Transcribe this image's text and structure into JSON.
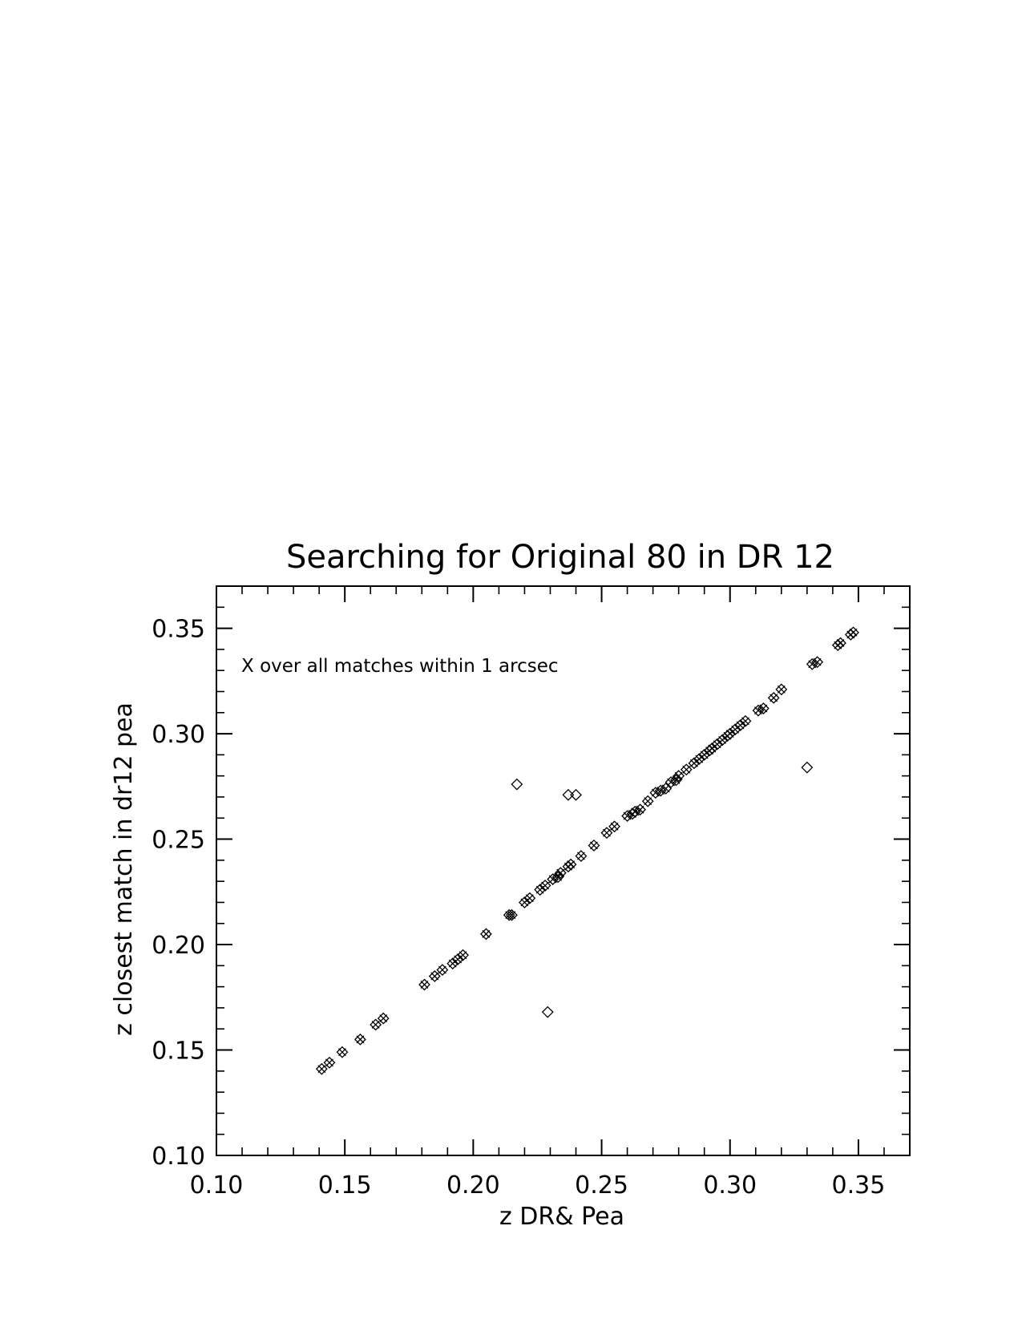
{
  "chart_data": {
    "type": "scatter",
    "title": "Searching for Original 80 in DR 12",
    "xlabel": "z DR& Pea",
    "ylabel": "z closest match in dr12 pea",
    "xlim": [
      0.1,
      0.37
    ],
    "ylim": [
      0.1,
      0.37
    ],
    "xticks": [
      "0.10",
      "0.15",
      "0.20",
      "0.25",
      "0.30",
      "0.35"
    ],
    "yticks": [
      "0.10",
      "0.15",
      "0.20",
      "0.25",
      "0.30",
      "0.35"
    ],
    "annotation": "X over all matches within 1 arcsec",
    "grid": false,
    "marker_color": "#000000",
    "series": [
      {
        "marker": "diamond",
        "points": [
          [
            0.141,
            0.141
          ],
          [
            0.144,
            0.144
          ],
          [
            0.149,
            0.149
          ],
          [
            0.156,
            0.155
          ],
          [
            0.162,
            0.162
          ],
          [
            0.165,
            0.165
          ],
          [
            0.181,
            0.181
          ],
          [
            0.185,
            0.185
          ],
          [
            0.188,
            0.188
          ],
          [
            0.192,
            0.191
          ],
          [
            0.194,
            0.193
          ],
          [
            0.196,
            0.195
          ],
          [
            0.205,
            0.205
          ],
          [
            0.214,
            0.214
          ],
          [
            0.215,
            0.214
          ],
          [
            0.22,
            0.22
          ],
          [
            0.222,
            0.222
          ],
          [
            0.226,
            0.226
          ],
          [
            0.228,
            0.228
          ],
          [
            0.231,
            0.231
          ],
          [
            0.233,
            0.232
          ],
          [
            0.234,
            0.234
          ],
          [
            0.237,
            0.237
          ],
          [
            0.238,
            0.238
          ],
          [
            0.242,
            0.242
          ],
          [
            0.247,
            0.247
          ],
          [
            0.252,
            0.253
          ],
          [
            0.255,
            0.256
          ],
          [
            0.26,
            0.261
          ],
          [
            0.262,
            0.262
          ],
          [
            0.263,
            0.263
          ],
          [
            0.265,
            0.264
          ],
          [
            0.268,
            0.268
          ],
          [
            0.271,
            0.272
          ],
          [
            0.273,
            0.273
          ],
          [
            0.275,
            0.274
          ],
          [
            0.277,
            0.277
          ],
          [
            0.279,
            0.278
          ],
          [
            0.28,
            0.28
          ],
          [
            0.283,
            0.283
          ],
          [
            0.286,
            0.286
          ],
          [
            0.288,
            0.288
          ],
          [
            0.29,
            0.29
          ],
          [
            0.292,
            0.292
          ],
          [
            0.293,
            0.293
          ],
          [
            0.295,
            0.295
          ],
          [
            0.297,
            0.297
          ],
          [
            0.299,
            0.299
          ],
          [
            0.3,
            0.3
          ],
          [
            0.302,
            0.302
          ],
          [
            0.304,
            0.304
          ],
          [
            0.306,
            0.306
          ],
          [
            0.311,
            0.311
          ],
          [
            0.313,
            0.312
          ],
          [
            0.317,
            0.317
          ],
          [
            0.32,
            0.321
          ],
          [
            0.332,
            0.333
          ],
          [
            0.334,
            0.334
          ],
          [
            0.342,
            0.342
          ],
          [
            0.343,
            0.343
          ],
          [
            0.347,
            0.347
          ],
          [
            0.348,
            0.348
          ],
          [
            0.217,
            0.276
          ],
          [
            0.237,
            0.271
          ],
          [
            0.24,
            0.271
          ],
          [
            0.33,
            0.284
          ],
          [
            0.229,
            0.168
          ]
        ]
      },
      {
        "marker": "x",
        "points": [
          [
            0.141,
            0.141
          ],
          [
            0.144,
            0.144
          ],
          [
            0.149,
            0.149
          ],
          [
            0.156,
            0.155
          ],
          [
            0.162,
            0.162
          ],
          [
            0.165,
            0.165
          ],
          [
            0.181,
            0.181
          ],
          [
            0.185,
            0.185
          ],
          [
            0.188,
            0.188
          ],
          [
            0.192,
            0.191
          ],
          [
            0.194,
            0.193
          ],
          [
            0.196,
            0.195
          ],
          [
            0.205,
            0.205
          ],
          [
            0.214,
            0.214
          ],
          [
            0.215,
            0.214
          ],
          [
            0.22,
            0.22
          ],
          [
            0.222,
            0.222
          ],
          [
            0.226,
            0.226
          ],
          [
            0.228,
            0.228
          ],
          [
            0.231,
            0.231
          ],
          [
            0.233,
            0.232
          ],
          [
            0.234,
            0.234
          ],
          [
            0.237,
            0.237
          ],
          [
            0.238,
            0.238
          ],
          [
            0.242,
            0.242
          ],
          [
            0.247,
            0.247
          ],
          [
            0.252,
            0.253
          ],
          [
            0.255,
            0.256
          ],
          [
            0.26,
            0.261
          ],
          [
            0.262,
            0.262
          ],
          [
            0.263,
            0.263
          ],
          [
            0.265,
            0.264
          ],
          [
            0.268,
            0.268
          ],
          [
            0.271,
            0.272
          ],
          [
            0.273,
            0.273
          ],
          [
            0.275,
            0.274
          ],
          [
            0.277,
            0.277
          ],
          [
            0.279,
            0.278
          ],
          [
            0.28,
            0.28
          ],
          [
            0.283,
            0.283
          ],
          [
            0.286,
            0.286
          ],
          [
            0.288,
            0.288
          ],
          [
            0.29,
            0.29
          ],
          [
            0.292,
            0.292
          ],
          [
            0.293,
            0.293
          ],
          [
            0.295,
            0.295
          ],
          [
            0.297,
            0.297
          ],
          [
            0.299,
            0.299
          ],
          [
            0.3,
            0.3
          ],
          [
            0.302,
            0.302
          ],
          [
            0.304,
            0.304
          ],
          [
            0.306,
            0.306
          ],
          [
            0.311,
            0.311
          ],
          [
            0.313,
            0.312
          ],
          [
            0.317,
            0.317
          ],
          [
            0.32,
            0.321
          ],
          [
            0.332,
            0.333
          ],
          [
            0.334,
            0.334
          ],
          [
            0.342,
            0.342
          ],
          [
            0.343,
            0.343
          ],
          [
            0.347,
            0.347
          ],
          [
            0.348,
            0.348
          ]
        ]
      }
    ]
  }
}
